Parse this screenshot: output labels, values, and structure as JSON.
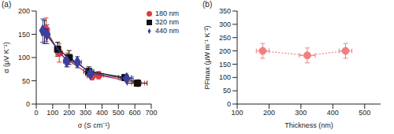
{
  "chart_data": [
    {
      "type": "scatter",
      "title": "(a)",
      "x_label": "σ (S cm⁻¹)",
      "y_label": "α (μV K⁻¹)",
      "xlim": [
        0,
        700
      ],
      "xticks": [
        0,
        100,
        200,
        300,
        400,
        500,
        600,
        700
      ],
      "ylim": [
        0,
        200
      ],
      "yticks": [
        0,
        50,
        100,
        150,
        200
      ],
      "legend": "upper right",
      "series": [
        {
          "name": "180 nm",
          "color": "#e23b3b",
          "marker": "circle",
          "line_style": "solid",
          "x": [
            60,
            140,
            190,
            340,
            380,
            620
          ],
          "values": [
            160,
            110,
            95,
            60,
            62,
            45
          ],
          "y_error": [
            25,
            20,
            15,
            8,
            8,
            5
          ],
          "x_error": [
            15,
            20,
            20,
            30,
            30,
            40
          ]
        },
        {
          "name": "320 nm",
          "color": "#111111",
          "marker": "square",
          "line_style": "solid",
          "x": [
            50,
            130,
            200,
            320,
            540,
            615
          ],
          "values": [
            155,
            118,
            100,
            70,
            57,
            45
          ],
          "y_error": [
            25,
            15,
            15,
            10,
            6,
            5
          ],
          "x_error": [
            15,
            15,
            20,
            30,
            40,
            60
          ]
        },
        {
          "name": "440 nm",
          "color": "#3b3f9e",
          "marker": "diamond",
          "line_style": "solid",
          "x": [
            40,
            65,
            185,
            250,
            330,
            550
          ],
          "values": [
            158,
            150,
            92,
            90,
            65,
            55
          ],
          "y_error": [
            25,
            20,
            12,
            12,
            8,
            6
          ],
          "x_error": [
            10,
            15,
            20,
            25,
            30,
            40
          ]
        }
      ]
    },
    {
      "type": "scatter",
      "title": "(b)",
      "x_label": "Thickness (nm)",
      "y_label": "PFmax (μW m⁻¹ K⁻²)",
      "xlim": [
        100,
        550
      ],
      "xticks": [
        100,
        200,
        300,
        400,
        500
      ],
      "ylim": [
        0,
        350
      ],
      "yticks": [
        0,
        50,
        100,
        150,
        200,
        250,
        300,
        350
      ],
      "color": "#f08080",
      "marker": "circle",
      "line_style": "dotted",
      "x": [
        180,
        320,
        440
      ],
      "values": [
        200,
        183,
        200
      ],
      "y_error": [
        28,
        28,
        28
      ],
      "x_error": [
        20,
        25,
        20
      ]
    }
  ]
}
